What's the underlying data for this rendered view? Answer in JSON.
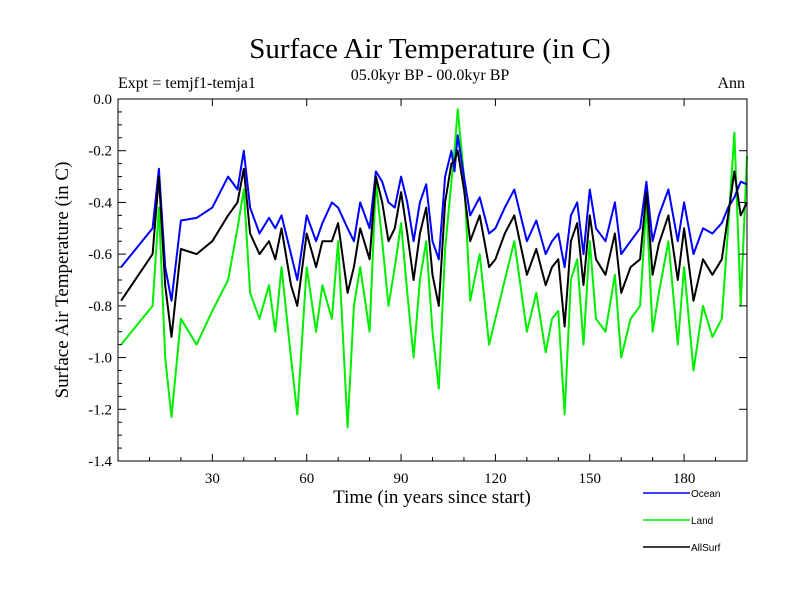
{
  "chart_data": {
    "type": "line",
    "title": "Surface Air Temperature (in C)",
    "subtitle": "05.0kyr BP - 00.0kyr BP",
    "left_annotation": "Expt = temjf1-temja1",
    "right_annotation": "Ann",
    "xlabel": "Time (in years since start)",
    "ylabel": "Surface Air Temperature (in C)",
    "xlim": [
      0,
      200
    ],
    "ylim": [
      -1.4,
      0.0
    ],
    "xticks": [
      30,
      60,
      90,
      120,
      150,
      180
    ],
    "xtick_labels": [
      "30",
      "60",
      "90",
      "120",
      "150",
      "180"
    ],
    "yticks": [
      -1.4,
      -1.2,
      -1.0,
      -0.8,
      -0.6,
      -0.4,
      -0.2,
      0.0
    ],
    "ytick_labels": [
      "-1.4",
      "-1.2",
      "-1.0",
      "-0.8",
      "-0.6",
      "-0.4",
      "-0.2",
      "0.0"
    ],
    "legend_position": "bottom-right, below plot",
    "x": [
      1,
      11,
      13,
      15,
      17,
      20,
      25,
      30,
      35,
      38,
      40,
      42,
      45,
      48,
      50,
      52,
      55,
      57,
      60,
      63,
      65,
      68,
      70,
      73,
      75,
      77,
      80,
      82,
      84,
      86,
      88,
      90,
      92,
      94,
      96,
      98,
      100,
      102,
      104,
      106,
      107,
      108,
      110,
      112,
      115,
      118,
      120,
      123,
      126,
      130,
      133,
      136,
      138,
      140,
      142,
      144,
      146,
      148,
      150,
      152,
      155,
      158,
      160,
      163,
      166,
      168,
      170,
      172,
      175,
      178,
      180,
      183,
      186,
      189,
      192,
      194,
      196,
      198,
      200
    ],
    "series": [
      {
        "name": "Ocean",
        "color": "#0000ff",
        "values": [
          -0.65,
          -0.5,
          -0.27,
          -0.65,
          -0.78,
          -0.47,
          -0.46,
          -0.42,
          -0.3,
          -0.35,
          -0.2,
          -0.42,
          -0.52,
          -0.46,
          -0.5,
          -0.45,
          -0.6,
          -0.7,
          -0.45,
          -0.55,
          -0.48,
          -0.4,
          -0.42,
          -0.5,
          -0.55,
          -0.4,
          -0.5,
          -0.28,
          -0.32,
          -0.4,
          -0.42,
          -0.3,
          -0.4,
          -0.55,
          -0.4,
          -0.33,
          -0.55,
          -0.62,
          -0.3,
          -0.2,
          -0.28,
          -0.14,
          -0.3,
          -0.45,
          -0.38,
          -0.52,
          -0.5,
          -0.42,
          -0.35,
          -0.55,
          -0.47,
          -0.6,
          -0.55,
          -0.52,
          -0.65,
          -0.45,
          -0.4,
          -0.6,
          -0.35,
          -0.5,
          -0.55,
          -0.4,
          -0.6,
          -0.55,
          -0.5,
          -0.32,
          -0.55,
          -0.45,
          -0.35,
          -0.55,
          -0.4,
          -0.6,
          -0.5,
          -0.52,
          -0.48,
          -0.42,
          -0.38,
          -0.32,
          -0.33
        ]
      },
      {
        "name": "Land",
        "color": "#00ee00",
        "values": [
          -0.95,
          -0.8,
          -0.42,
          -1.0,
          -1.23,
          -0.85,
          -0.95,
          -0.82,
          -0.7,
          -0.5,
          -0.35,
          -0.75,
          -0.85,
          -0.72,
          -0.9,
          -0.65,
          -1.0,
          -1.22,
          -0.65,
          -0.9,
          -0.72,
          -0.85,
          -0.55,
          -1.27,
          -0.8,
          -0.65,
          -0.9,
          -0.32,
          -0.55,
          -0.8,
          -0.65,
          -0.48,
          -0.75,
          -1.0,
          -0.7,
          -0.55,
          -0.9,
          -1.12,
          -0.58,
          -0.32,
          -0.2,
          -0.04,
          -0.3,
          -0.78,
          -0.6,
          -0.95,
          -0.85,
          -0.7,
          -0.55,
          -0.9,
          -0.75,
          -0.98,
          -0.85,
          -0.82,
          -1.22,
          -0.7,
          -0.62,
          -0.95,
          -0.55,
          -0.85,
          -0.9,
          -0.68,
          -1.0,
          -0.85,
          -0.8,
          -0.4,
          -0.9,
          -0.75,
          -0.55,
          -0.95,
          -0.65,
          -1.05,
          -0.8,
          -0.92,
          -0.85,
          -0.5,
          -0.13,
          -0.8,
          -0.22
        ]
      },
      {
        "name": "AllSurf",
        "color": "#000000",
        "values": [
          -0.78,
          -0.6,
          -0.3,
          -0.72,
          -0.92,
          -0.58,
          -0.6,
          -0.55,
          -0.45,
          -0.4,
          -0.27,
          -0.52,
          -0.6,
          -0.55,
          -0.62,
          -0.5,
          -0.72,
          -0.8,
          -0.52,
          -0.65,
          -0.55,
          -0.55,
          -0.48,
          -0.75,
          -0.65,
          -0.5,
          -0.62,
          -0.3,
          -0.4,
          -0.55,
          -0.5,
          -0.36,
          -0.52,
          -0.7,
          -0.52,
          -0.42,
          -0.68,
          -0.8,
          -0.4,
          -0.25,
          -0.24,
          -0.2,
          -0.35,
          -0.55,
          -0.45,
          -0.65,
          -0.62,
          -0.52,
          -0.45,
          -0.68,
          -0.58,
          -0.72,
          -0.65,
          -0.62,
          -0.88,
          -0.55,
          -0.48,
          -0.72,
          -0.45,
          -0.62,
          -0.68,
          -0.52,
          -0.75,
          -0.65,
          -0.62,
          -0.36,
          -0.68,
          -0.56,
          -0.45,
          -0.7,
          -0.5,
          -0.78,
          -0.62,
          -0.68,
          -0.62,
          -0.45,
          -0.28,
          -0.45,
          -0.4
        ]
      }
    ]
  }
}
